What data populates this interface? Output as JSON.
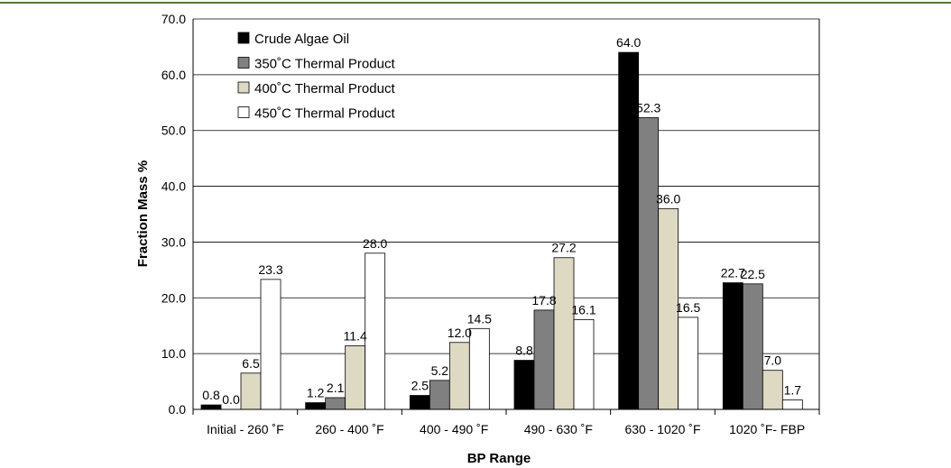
{
  "chart_data": {
    "type": "bar",
    "categories": [
      "Initial - 260 ˚F",
      "260 - 400 ˚F",
      "400 - 490 ˚F",
      "490 - 630  ˚F",
      "630 - 1020 ˚F",
      "1020 ˚F- FBP"
    ],
    "series": [
      {
        "name": "Crude Algae Oil",
        "color": "#000000",
        "values": [
          0.8,
          1.2,
          2.5,
          8.8,
          64.0,
          22.7
        ]
      },
      {
        "name": "350˚C Thermal Product",
        "color": "#808080",
        "values": [
          0.0,
          2.1,
          5.2,
          17.8,
          52.3,
          22.5
        ]
      },
      {
        "name": "400˚C Thermal Product",
        "color": "#ddd9c3",
        "values": [
          6.5,
          11.4,
          12.0,
          27.2,
          36.0,
          7.0
        ]
      },
      {
        "name": "450˚C Thermal Product",
        "color": "#ffffff",
        "values": [
          23.3,
          28.0,
          14.5,
          16.1,
          16.5,
          1.7
        ]
      }
    ],
    "value_labels": [
      [
        "0.8",
        "1.2",
        "2.5",
        "8.8",
        "64.0",
        "22.7"
      ],
      [
        "0.0",
        "2.1",
        "5.2",
        "17.8",
        "52.3",
        "22.5"
      ],
      [
        "6.5",
        "11.4",
        "12.0",
        "27.2",
        "36.0",
        "7.0"
      ],
      [
        "23.3",
        "28.0",
        "14.5",
        "16.1",
        "16.5",
        "1.7"
      ]
    ],
    "y_ticks": [
      "0.0",
      "10.0",
      "20.0",
      "30.0",
      "40.0",
      "50.0",
      "60.0",
      "70.0"
    ],
    "xlabel": "BP Range",
    "ylabel": "Fraction Mass %",
    "ylim": [
      0,
      70
    ],
    "grid": true,
    "legend_position": "top-left"
  }
}
